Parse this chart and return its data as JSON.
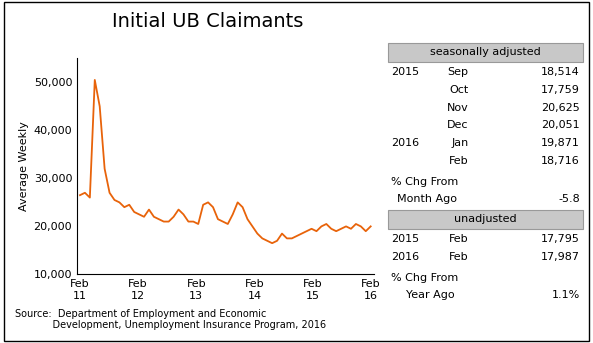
{
  "title": "Initial UB Claimants",
  "ylabel": "Average Weekly",
  "xlabel_ticks": [
    "Feb\n11",
    "Feb\n12",
    "Feb\n13",
    "Feb\n14",
    "Feb\n15",
    "Feb\n16"
  ],
  "ylim": [
    10000,
    55000
  ],
  "yticks": [
    10000,
    20000,
    30000,
    40000,
    50000
  ],
  "ytick_labels": [
    "10,000",
    "20,000",
    "30,000",
    "40,000",
    "50,000"
  ],
  "line_color": "#E8630A",
  "line_width": 1.3,
  "background_color": "#ffffff",
  "box_color": "#c8c8c8",
  "box_edge_color": "#999999",
  "title_fontsize": 14,
  "axis_fontsize": 8,
  "annotation_fontsize": 8,
  "source_text": "Source:  Department of Employment and Economic\n            Development, Unemployment Insurance Program, 2016",
  "seasonally_adjusted_label": "seasonally adjusted",
  "unadjusted_label": "unadjusted",
  "sa_data": [
    [
      "2015",
      "Sep",
      "18,514"
    ],
    [
      "",
      "Oct",
      "17,759"
    ],
    [
      "",
      "Nov",
      "20,625"
    ],
    [
      "",
      "Dec",
      "20,051"
    ],
    [
      "2016",
      "Jan",
      "19,871"
    ],
    [
      "",
      "Feb",
      "18,716"
    ]
  ],
  "pct_chg_month_line1": "% Chg From",
  "pct_chg_month_line2": "Month Ago",
  "pct_chg_month_val": "-5.8",
  "ua_data": [
    [
      "2015",
      "Feb",
      "17,795"
    ],
    [
      "2016",
      "Feb",
      "17,987"
    ]
  ],
  "pct_chg_year_line1": "% Chg From",
  "pct_chg_year_line2": "Year Ago",
  "pct_chg_year_val": "1.1%",
  "y_values": [
    26500,
    27000,
    26000,
    50500,
    45000,
    32000,
    27000,
    25500,
    25000,
    24000,
    24500,
    23000,
    22500,
    22000,
    23500,
    22000,
    21500,
    21000,
    21000,
    22000,
    23500,
    22500,
    21000,
    21000,
    20500,
    24500,
    25000,
    24000,
    21500,
    21000,
    20500,
    22500,
    25000,
    24000,
    21500,
    20000,
    18500,
    17500,
    17000,
    16500,
    17000,
    18500,
    17500,
    17500,
    18000,
    18500,
    19000,
    19500,
    19000,
    20000,
    20500,
    19500,
    19000,
    19500,
    20000,
    19500,
    20500,
    20000,
    19000,
    20000
  ]
}
